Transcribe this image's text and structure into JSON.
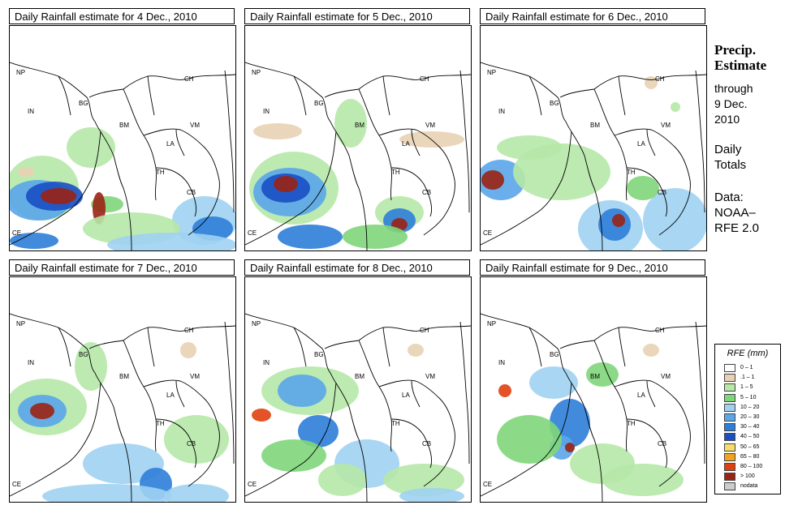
{
  "panels": [
    {
      "title": "Daily Rainfall estimate for  4 Dec., 2010"
    },
    {
      "title": "Daily Rainfall estimate for  5 Dec., 2010"
    },
    {
      "title": "Daily Rainfall estimate for  6 Dec., 2010"
    },
    {
      "title": "Daily Rainfall estimate for  7 Dec., 2010"
    },
    {
      "title": "Daily Rainfall estimate for  8 Dec., 2010"
    },
    {
      "title": "Daily Rainfall estimate for  9 Dec., 2010"
    }
  ],
  "map_labels": {
    "np": "NP",
    "in": "IN",
    "bg": "BG",
    "ch": "CH",
    "bm": "BM",
    "vm": "VM",
    "la": "LA",
    "th": "TH",
    "cb": "CB",
    "ce": "CE"
  },
  "side": {
    "title_line1": "Precip.",
    "title_line2": "Estimate",
    "through": "through",
    "date_line1": "9 Dec.",
    "date_line2": "2010",
    "daily1": "Daily",
    "daily2": "Totals",
    "data1": "Data:",
    "data2": "NOAA–",
    "data3": "RFE 2.0"
  },
  "legend": {
    "title": "RFE (mm)",
    "items": [
      {
        "label": "0 – 1",
        "color": "#ffffff"
      },
      {
        "label": ".1 – 1",
        "color": "#e8d2b4"
      },
      {
        "label": "1 – 5",
        "color": "#b6e8a8"
      },
      {
        "label": "5 – 10",
        "color": "#7fd67a"
      },
      {
        "label": "10 – 20",
        "color": "#9fd1f2"
      },
      {
        "label": "20 – 30",
        "color": "#5aa6ea"
      },
      {
        "label": "30 – 40",
        "color": "#2d7ed8"
      },
      {
        "label": "40 – 50",
        "color": "#1a4fc4"
      },
      {
        "label": "50 – 65",
        "color": "#f6dd6a"
      },
      {
        "label": "65 – 80",
        "color": "#f2a21c"
      },
      {
        "label": "80 – 100",
        "color": "#e0400e"
      },
      {
        "label": "> 100",
        "color": "#9a2414"
      },
      {
        "label": "nodata",
        "color": "#cccccc"
      }
    ]
  }
}
